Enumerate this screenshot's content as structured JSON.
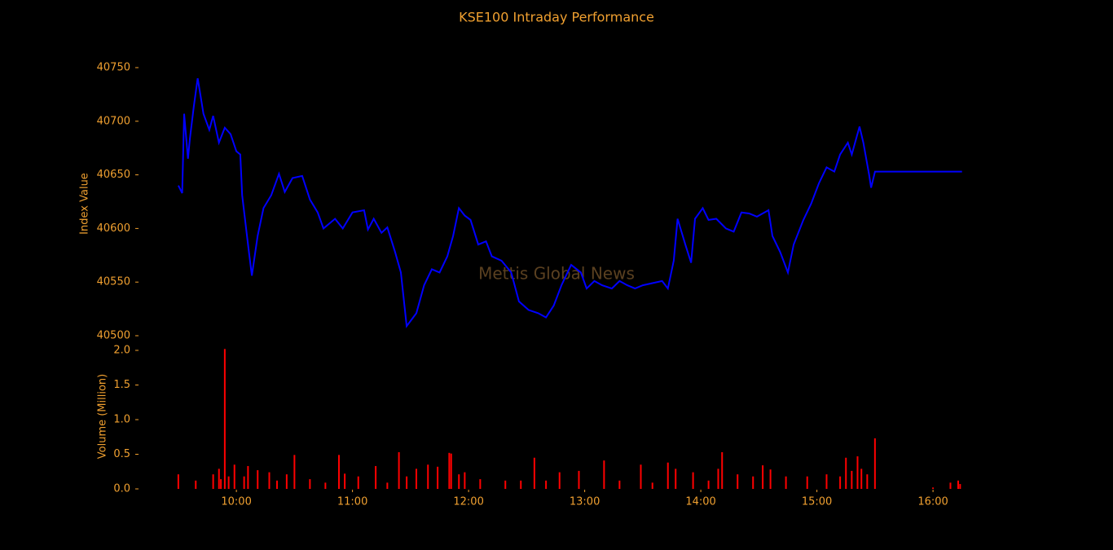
{
  "chart_data": [
    {
      "type": "line",
      "title": "KSE100 Intraday Performance",
      "ylabel": "Index Value",
      "watermark": "Mettis Global News",
      "xlim": [
        "09:09",
        "16:28"
      ],
      "ylim": [
        40500,
        40755
      ],
      "yticks": [
        40500,
        40550,
        40600,
        40650,
        40700,
        40750
      ],
      "x": [
        "09:30",
        "09:32",
        "09:33",
        "09:35",
        "09:36",
        "09:38",
        "09:40",
        "09:41",
        "09:43",
        "09:46",
        "09:48",
        "09:51",
        "09:54",
        "09:57",
        "10:00",
        "10:02",
        "10:03",
        "10:06",
        "10:08",
        "10:11",
        "10:14",
        "10:18",
        "10:22",
        "10:25",
        "10:29",
        "10:34",
        "10:38",
        "10:42",
        "10:45",
        "10:51",
        "10:55",
        "11:00",
        "11:06",
        "11:08",
        "11:11",
        "11:15",
        "11:18",
        "11:22",
        "11:25",
        "11:28",
        "11:33",
        "11:37",
        "11:41",
        "11:45",
        "11:49",
        "11:52",
        "11:55",
        "11:58",
        "12:01",
        "12:05",
        "12:09",
        "12:12",
        "12:17",
        "12:22",
        "12:26",
        "12:31",
        "12:36",
        "12:40",
        "12:44",
        "12:48",
        "12:53",
        "12:58",
        "13:01",
        "13:05",
        "13:09",
        "13:14",
        "13:18",
        "13:22",
        "13:26",
        "13:30",
        "13:35",
        "13:40",
        "13:43",
        "13:46",
        "13:48",
        "13:52",
        "13:55",
        "13:57",
        "14:01",
        "14:04",
        "14:08",
        "14:13",
        "14:17",
        "14:21",
        "14:25",
        "14:29",
        "14:35",
        "14:37",
        "14:41",
        "14:45",
        "14:48",
        "14:53",
        "14:57",
        "15:01",
        "15:05",
        "15:09",
        "15:12",
        "15:16",
        "15:18",
        "15:22",
        "15:24",
        "15:27",
        "15:28",
        "15:30",
        "16:15"
      ],
      "series": [
        {
          "name": "KSE100",
          "color": "#0000ff",
          "values": [
            40640,
            40633,
            40707,
            40665,
            40684,
            40714,
            40740,
            40729,
            40707,
            40692,
            40705,
            40680,
            40694,
            40688,
            40672,
            40669,
            40631,
            40585,
            40556,
            40593,
            40619,
            40631,
            40651,
            40634,
            40647,
            40649,
            40627,
            40615,
            40600,
            40609,
            40600,
            40615,
            40617,
            40599,
            40609,
            40596,
            40601,
            40578,
            40559,
            40509,
            40521,
            40547,
            40562,
            40559,
            40574,
            40593,
            40619,
            40612,
            40608,
            40585,
            40588,
            40574,
            40570,
            40559,
            40532,
            40524,
            40521,
            40517,
            40528,
            40547,
            40566,
            40559,
            40544,
            40551,
            40547,
            40544,
            40551,
            40547,
            40544,
            40547,
            40549,
            40551,
            40544,
            40570,
            40609,
            40585,
            40568,
            40609,
            40619,
            40608,
            40609,
            40600,
            40597,
            40615,
            40614,
            40611,
            40617,
            40593,
            40578,
            40559,
            40585,
            40608,
            40623,
            40642,
            40657,
            40653,
            40669,
            40680,
            40669,
            40695,
            40680,
            40650,
            40638,
            40653,
            40653
          ]
        }
      ]
    },
    {
      "type": "bar",
      "ylabel": "Volume (Million)",
      "color": "#ff0000",
      "xlim": [
        "09:09",
        "16:28"
      ],
      "xticks": [
        "10:00",
        "11:00",
        "12:00",
        "13:00",
        "14:00",
        "15:00",
        "16:00"
      ],
      "ylim": [
        0,
        2.05
      ],
      "yticks": [
        {
          "value": 0,
          "label": "0.0"
        },
        0.5,
        {
          "value": 1,
          "label": "1.0"
        },
        1.5,
        {
          "value": 2,
          "label": "2.0"
        }
      ],
      "x": [
        "09:30",
        "09:39",
        "09:48",
        "09:51",
        "09:52",
        "09:54",
        "09:56",
        "09:59",
        "10:04",
        "10:06",
        "10:11",
        "10:17",
        "10:21",
        "10:26",
        "10:30",
        "10:38",
        "10:46",
        "10:53",
        "10:56",
        "11:03",
        "11:12",
        "11:18",
        "11:24",
        "11:28",
        "11:33",
        "11:39",
        "11:44",
        "11:50",
        "11:51",
        "11:55",
        "11:58",
        "12:06",
        "12:19",
        "12:27",
        "12:34",
        "12:40",
        "12:47",
        "12:57",
        "13:10",
        "13:18",
        "13:29",
        "13:35",
        "13:43",
        "13:47",
        "13:56",
        "14:04",
        "14:09",
        "14:11",
        "14:19",
        "14:27",
        "14:32",
        "14:36",
        "14:44",
        "14:55",
        "15:05",
        "15:12",
        "15:15",
        "15:18",
        "15:21",
        "15:23",
        "15:26",
        "15:30",
        "16:00",
        "16:09",
        "16:13",
        "16:14"
      ],
      "values": [
        0.21,
        0.12,
        0.21,
        0.29,
        0.14,
        2.02,
        0.18,
        0.35,
        0.18,
        0.33,
        0.27,
        0.24,
        0.12,
        0.21,
        0.49,
        0.14,
        0.09,
        0.49,
        0.22,
        0.18,
        0.33,
        0.09,
        0.53,
        0.18,
        0.29,
        0.35,
        0.32,
        0.52,
        0.51,
        0.21,
        0.24,
        0.14,
        0.12,
        0.12,
        0.45,
        0.12,
        0.24,
        0.26,
        0.41,
        0.12,
        0.35,
        0.09,
        0.38,
        0.29,
        0.24,
        0.12,
        0.29,
        0.53,
        0.21,
        0.18,
        0.34,
        0.28,
        0.18,
        0.18,
        0.21,
        0.18,
        0.45,
        0.26,
        0.47,
        0.29,
        0.21,
        0.73,
        0.02,
        0.09,
        0.12,
        0.07
      ]
    }
  ]
}
